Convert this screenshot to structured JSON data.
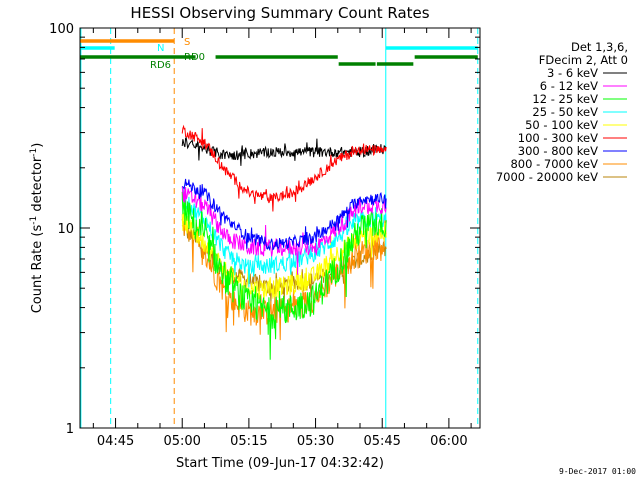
{
  "chart_data": {
    "type": "line",
    "title": "HESSI Observing Summary Count Rates",
    "xlabel": "Start Time (09-Jun-17 04:32:42)",
    "ylabel_prefix": "Count Rate (s",
    "ylabel_sup": "-1",
    "ylabel_mid": " detector",
    "ylabel_sup2": "-1",
    "ylabel_suffix": ")",
    "y_scale": "log",
    "ylim": [
      1,
      100
    ],
    "y_tick_labels": [
      "1",
      "10",
      "100"
    ],
    "x_range_min": [
      37,
      105
    ],
    "x_tick_labels": [
      "04:45",
      "05:00",
      "05:15",
      "05:30",
      "05:45",
      "06:00"
    ],
    "x_tick_minutes": [
      45,
      60,
      75,
      90,
      105,
      120
    ],
    "legend_header": [
      "Det 1,3,6,",
      "FDecim 2, Att 0"
    ],
    "series": [
      {
        "name": "3 - 6 keV",
        "color": "#000000",
        "x": [
          60,
          70,
          80,
          90,
          100,
          106
        ],
        "values": [
          27,
          23,
          24,
          24,
          24,
          25
        ],
        "noise": 0.06
      },
      {
        "name": "6 - 12 keV",
        "color": "#ff00ff",
        "x": [
          60,
          65,
          70,
          75,
          80,
          85,
          90,
          95,
          100,
          106
        ],
        "values": [
          15,
          13,
          9,
          8,
          8,
          8,
          8,
          10,
          13,
          13
        ],
        "noise": 0.1
      },
      {
        "name": "12 - 25 keV",
        "color": "#00ff00",
        "x": [
          60,
          65,
          70,
          75,
          80,
          85,
          90,
          95,
          100,
          106
        ],
        "values": [
          13,
          9,
          5.5,
          4.2,
          3.8,
          4,
          4.5,
          6.5,
          10,
          11
        ],
        "noise": 0.18
      },
      {
        "name": "25 - 50 keV",
        "color": "#00ffff",
        "x": [
          60,
          65,
          70,
          75,
          80,
          85,
          90,
          95,
          100,
          106
        ],
        "values": [
          14,
          11,
          7.5,
          6.3,
          6.5,
          6.8,
          7.5,
          9,
          11,
          11
        ],
        "noise": 0.1
      },
      {
        "name": "50 - 100 keV",
        "color": "#ffff00",
        "x": [
          60,
          65,
          70,
          75,
          80,
          85,
          90,
          95,
          100,
          106
        ],
        "values": [
          11,
          8.5,
          6,
          5,
          5,
          5.2,
          5.8,
          7.5,
          9,
          9.5
        ],
        "noise": 0.12
      },
      {
        "name": "100 - 300 keV",
        "color": "#ff0000",
        "x": [
          60,
          65,
          70,
          75,
          80,
          85,
          90,
          95,
          100,
          106
        ],
        "values": [
          31,
          27,
          19,
          15,
          14,
          15,
          18,
          22,
          25,
          24
        ],
        "noise": 0.06
      },
      {
        "name": "300 - 800 keV",
        "color": "#0000ff",
        "x": [
          60,
          65,
          70,
          75,
          80,
          85,
          90,
          95,
          100,
          106
        ],
        "values": [
          17,
          15,
          11,
          9,
          8.3,
          8.5,
          9,
          11,
          14,
          14
        ],
        "noise": 0.07
      },
      {
        "name": "800 - 7000 keV",
        "color": "#ff8c00",
        "x": [
          60,
          65,
          70,
          75,
          80,
          85,
          90,
          95,
          100,
          106
        ],
        "values": [
          11,
          7.5,
          4.6,
          3.8,
          3.8,
          4,
          4.5,
          6,
          7.5,
          8.5
        ],
        "noise": 0.15
      },
      {
        "name": "7000 - 20000 keV",
        "color": "#b8860b",
        "x": [
          60,
          70,
          80,
          90,
          100,
          106
        ],
        "values": [
          10,
          6,
          5,
          5.5,
          7,
          8
        ],
        "noise": 0.1
      }
    ],
    "overlay_vlines": [
      {
        "x": 37.2,
        "color": "#00ffff",
        "dashed": false
      },
      {
        "x": 43.9,
        "color": "#00ffff",
        "dashed": true
      },
      {
        "x": 58.2,
        "color": "#ff8c00",
        "dashed": true
      },
      {
        "x": 105.8,
        "color": "#00ffff",
        "dashed": false
      },
      {
        "x": 126.5,
        "color": "#00ffff",
        "dashed": true
      }
    ],
    "overlay_bars": [
      {
        "label": "S",
        "color": "#ff8c00",
        "segments": [
          [
            37,
            58.2
          ]
        ]
      },
      {
        "label": "N",
        "color": "#00ffff",
        "segments": [
          [
            37,
            44.8
          ],
          [
            105.8,
            126.5
          ]
        ]
      },
      {
        "label": "RD0",
        "color": "#008000",
        "segments": [
          [
            37,
            63
          ],
          [
            67.5,
            95
          ],
          [
            95.2,
            103.5
          ],
          [
            103.8,
            112
          ],
          [
            112.3,
            126.5
          ]
        ]
      }
    ],
    "bar_labels": [
      "S",
      "N",
      "RD0",
      "RD6"
    ],
    "grid": false,
    "legend_position": "right"
  },
  "footer": {
    "timestamp": "9-Dec-2017 01:00"
  }
}
